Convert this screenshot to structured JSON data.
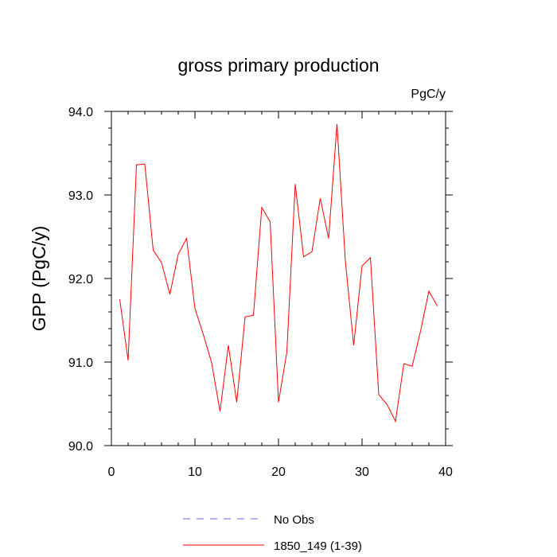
{
  "chart_data": {
    "type": "line",
    "title": "gross primary production",
    "units_label": "PgC/y",
    "ylabel": "GPP  (PgC/y)",
    "xlabel": "",
    "xlim": [
      0,
      40
    ],
    "ylim": [
      90.0,
      94.0
    ],
    "x_ticks": [
      0,
      10,
      20,
      30,
      40
    ],
    "x_tick_labels": [
      "0",
      "10",
      "20",
      "30",
      "40"
    ],
    "y_ticks": [
      90.0,
      91.0,
      92.0,
      93.0,
      94.0
    ],
    "y_tick_labels": [
      "90.0",
      "91.0",
      "92.0",
      "93.0",
      "94.0"
    ],
    "grid": false,
    "legend_position": "bottom",
    "x": [
      1,
      2,
      3,
      4,
      5,
      6,
      7,
      8,
      9,
      10,
      11,
      12,
      13,
      14,
      15,
      16,
      17,
      18,
      19,
      20,
      21,
      22,
      23,
      24,
      25,
      26,
      27,
      28,
      29,
      30,
      31,
      32,
      33,
      34,
      35,
      36,
      37,
      38,
      39
    ],
    "series": [
      {
        "name": "1850_149 (1-39)",
        "color": "#ff0000",
        "values": [
          91.75,
          91.02,
          93.36,
          93.37,
          92.34,
          92.19,
          91.81,
          92.29,
          92.48,
          91.64,
          91.33,
          90.99,
          90.41,
          91.2,
          90.52,
          91.54,
          91.56,
          92.85,
          92.68,
          90.52,
          91.12,
          93.13,
          92.26,
          92.32,
          92.96,
          92.48,
          93.85,
          92.21,
          91.2,
          92.15,
          92.25,
          90.61,
          90.49,
          90.29,
          90.98,
          90.95,
          91.37,
          91.85,
          91.67
        ]
      }
    ],
    "legend": [
      {
        "label": "No Obs",
        "color": "#6666ff",
        "dash": true
      },
      {
        "label": "1850_149 (1-39)",
        "color": "#ff0000",
        "dash": false
      }
    ]
  }
}
